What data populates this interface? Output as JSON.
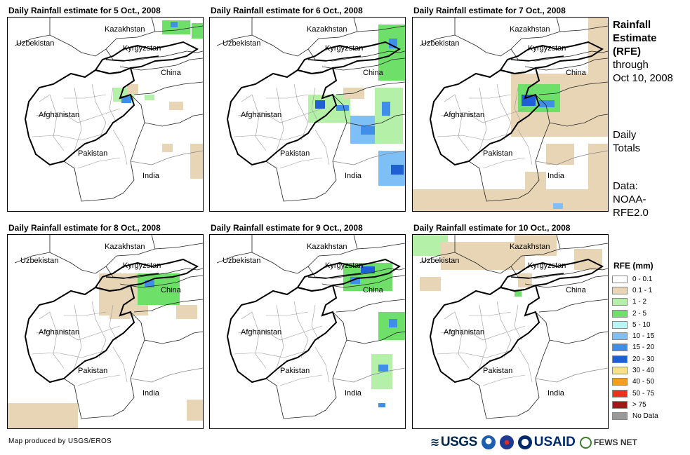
{
  "panels": [
    {
      "title": "Daily Rainfall estimate for 5 Oct., 2008"
    },
    {
      "title": "Daily Rainfall estimate for 6 Oct., 2008"
    },
    {
      "title": "Daily Rainfall estimate for 7 Oct., 2008"
    },
    {
      "title": "Daily Rainfall estimate for 8 Oct., 2008"
    },
    {
      "title": "Daily Rainfall estimate for 9 Oct., 2008"
    },
    {
      "title": "Daily Rainfall estimate for 10 Oct., 2008"
    }
  ],
  "map_labels": {
    "kazakhstan": "Kazakhstan",
    "uzbekistan": "Uzbekistan",
    "kyrgyzstan": "Kyrgyzstan",
    "china": "China",
    "afghanistan": "Afghanistan",
    "pakistan": "Pakistan",
    "india": "India"
  },
  "side": {
    "title_line1": "Rainfall",
    "title_line2": "Estimate",
    "title_line3": "(RFE)",
    "title_line4": "through",
    "title_line5": "Oct 10, 2008",
    "daily_line1": "Daily",
    "daily_line2": "Totals",
    "source_line1": "Data:",
    "source_line2": "NOAA-",
    "source_line3": "RFE2.0"
  },
  "legend": {
    "title": "RFE (mm)",
    "items": [
      {
        "label": "0 - 0.1",
        "color": "#ffffff"
      },
      {
        "label": "0.1 - 1",
        "color": "#e8d5b5"
      },
      {
        "label": "1 - 2",
        "color": "#b4f0a8"
      },
      {
        "label": "2 - 5",
        "color": "#6ee06a"
      },
      {
        "label": "5 - 10",
        "color": "#b8f4f4"
      },
      {
        "label": "10 - 15",
        "color": "#7ec0f5"
      },
      {
        "label": "15 - 20",
        "color": "#3f8fe8"
      },
      {
        "label": "20 - 30",
        "color": "#1e5fd6"
      },
      {
        "label": "30 - 40",
        "color": "#f7e08a"
      },
      {
        "label": "40 - 50",
        "color": "#f59d1c"
      },
      {
        "label": "50 - 75",
        "color": "#e83418"
      },
      {
        "label": "> 75",
        "color": "#a01818"
      },
      {
        "label": "No Data",
        "color": "#999999"
      }
    ]
  },
  "footer": {
    "credit": "Map produced by USGS/EROS",
    "logo_usgs": "USGS",
    "logo_usaid": "USAID",
    "logo_fews": "FEWS NET"
  }
}
